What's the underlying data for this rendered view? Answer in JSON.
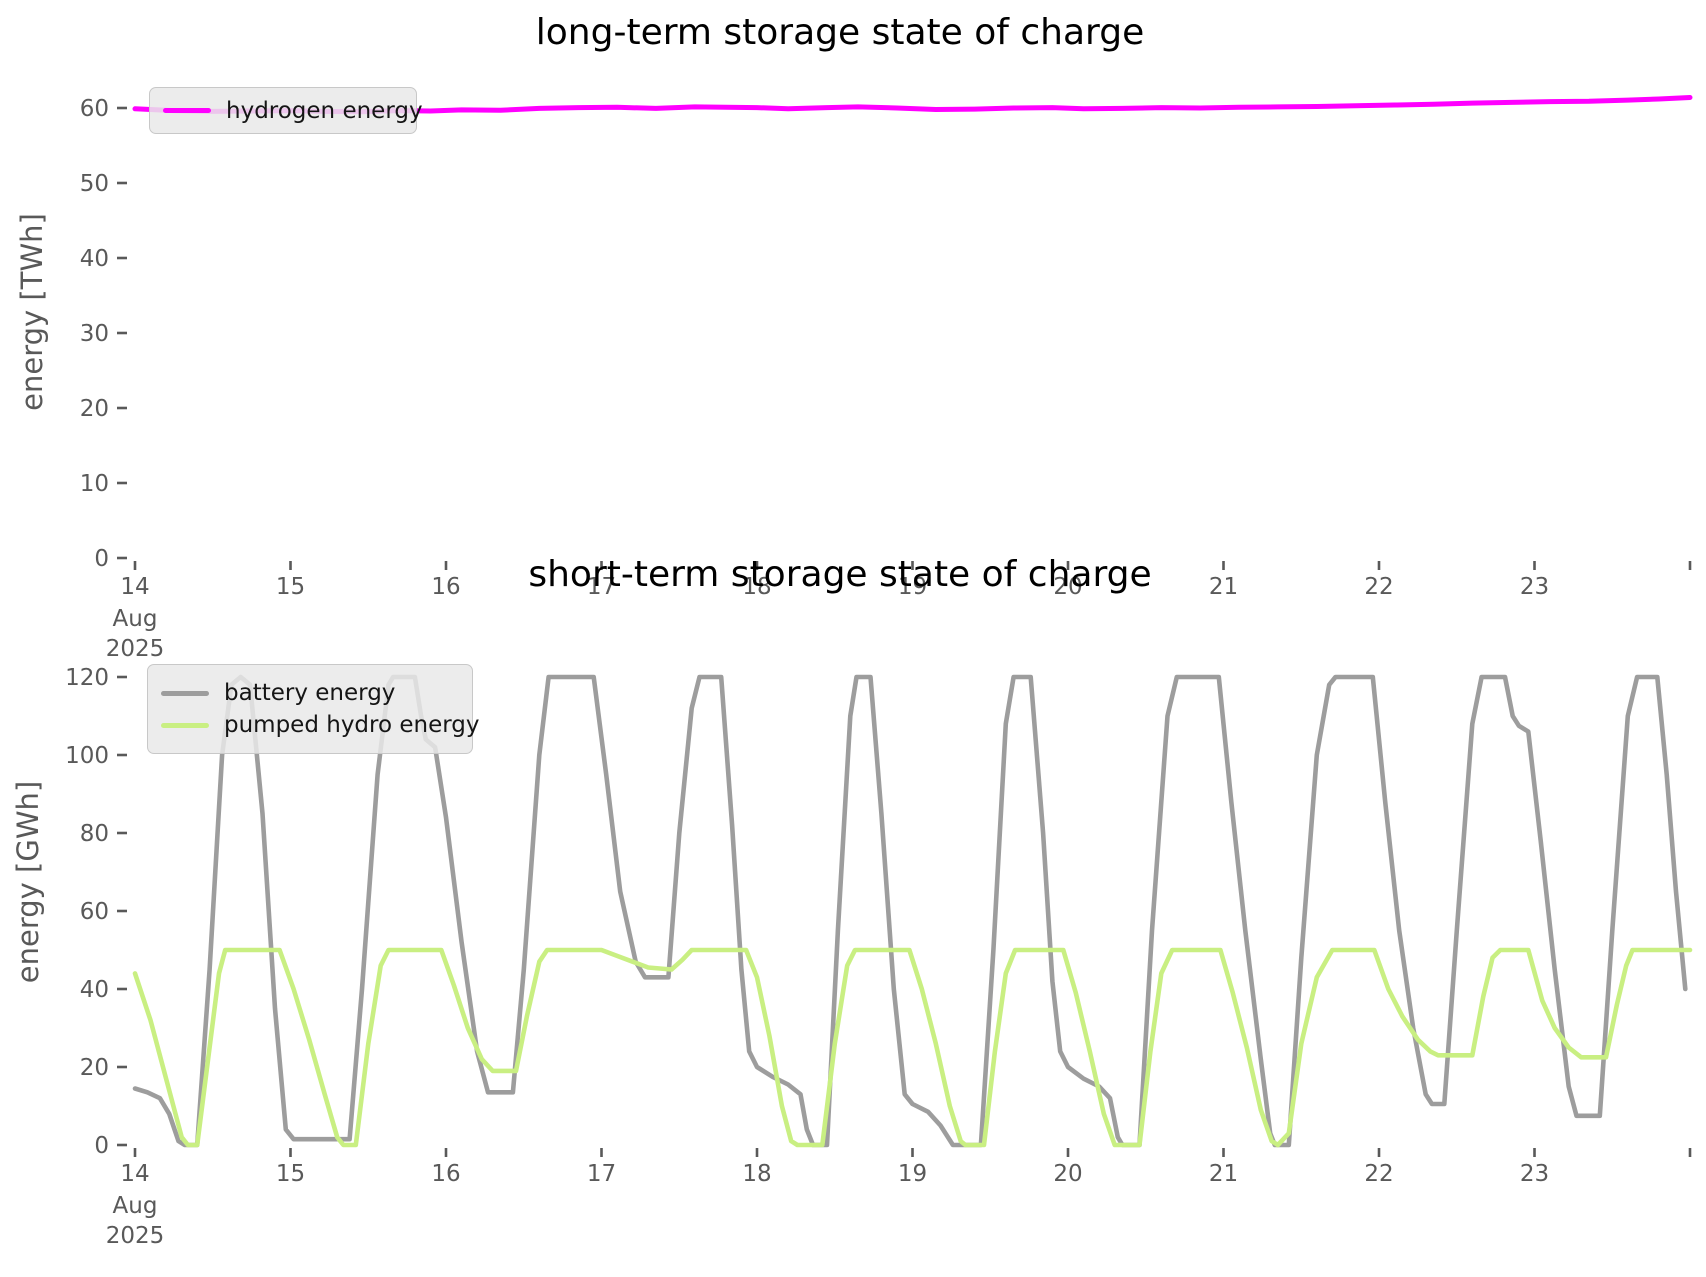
{
  "figure": {
    "background": "#ffffff",
    "tick_color": "#595959",
    "month_label": "Aug",
    "year_label": "2025"
  },
  "chart_data": [
    {
      "type": "line",
      "title": "long-term storage state of charge",
      "xlabel": "",
      "ylabel": "energy [TWh]",
      "xlim": [
        14,
        24
      ],
      "ylim": [
        0,
        63
      ],
      "grid": false,
      "legend_position": "upper left",
      "yticks": [
        0,
        10,
        20,
        30,
        40,
        50,
        60
      ],
      "xticks": {
        "days": [
          14,
          15,
          16,
          17,
          18,
          19,
          20,
          21,
          22,
          23,
          24
        ],
        "labels": [
          "14",
          "15",
          "16",
          "17",
          "18",
          "19",
          "20",
          "21",
          "22",
          "23",
          ""
        ]
      },
      "month": "Aug",
      "year": "2025",
      "series": [
        {
          "name": "hydrogen energy",
          "color": "#ff00ff",
          "points": [
            [
              14,
              59.9
            ],
            [
              14.25,
              59.65
            ],
            [
              14.5,
              59.55
            ],
            [
              14.75,
              59.6
            ],
            [
              15,
              59.65
            ],
            [
              15.2,
              59.55
            ],
            [
              15.45,
              59.5
            ],
            [
              15.7,
              59.65
            ],
            [
              15.9,
              59.6
            ],
            [
              16.1,
              59.75
            ],
            [
              16.35,
              59.7
            ],
            [
              16.6,
              59.95
            ],
            [
              16.85,
              60.05
            ],
            [
              17.1,
              60.1
            ],
            [
              17.35,
              59.95
            ],
            [
              17.6,
              60.15
            ],
            [
              17.8,
              60.1
            ],
            [
              18,
              60.05
            ],
            [
              18.2,
              59.9
            ],
            [
              18.45,
              60.05
            ],
            [
              18.65,
              60.15
            ],
            [
              18.9,
              60.0
            ],
            [
              19.15,
              59.8
            ],
            [
              19.4,
              59.85
            ],
            [
              19.65,
              60.0
            ],
            [
              19.9,
              60.05
            ],
            [
              20.1,
              59.9
            ],
            [
              20.35,
              59.95
            ],
            [
              20.6,
              60.05
            ],
            [
              20.85,
              60.0
            ],
            [
              21.1,
              60.1
            ],
            [
              21.35,
              60.15
            ],
            [
              21.6,
              60.2
            ],
            [
              21.85,
              60.3
            ],
            [
              22.1,
              60.4
            ],
            [
              22.35,
              60.5
            ],
            [
              22.6,
              60.65
            ],
            [
              22.85,
              60.75
            ],
            [
              23.1,
              60.85
            ],
            [
              23.35,
              60.9
            ],
            [
              23.6,
              61.05
            ],
            [
              23.8,
              61.2
            ],
            [
              24,
              61.4
            ]
          ]
        }
      ]
    },
    {
      "type": "line",
      "title": "short-term storage state of charge",
      "xlabel": "",
      "ylabel": "energy [GWh]",
      "xlim": [
        14,
        24
      ],
      "ylim": [
        0,
        126
      ],
      "grid": false,
      "legend_position": "upper left",
      "yticks": [
        0,
        20,
        40,
        60,
        80,
        100,
        120
      ],
      "xticks": {
        "days": [
          14,
          15,
          16,
          17,
          18,
          19,
          20,
          21,
          22,
          23,
          24
        ],
        "labels": [
          "14",
          "15",
          "16",
          "17",
          "18",
          "19",
          "20",
          "21",
          "22",
          "23",
          ""
        ]
      },
      "month": "Aug",
      "year": "2025",
      "series": [
        {
          "name": "battery energy",
          "color": "#9d9d9d",
          "points": [
            [
              14,
              14.5
            ],
            [
              14.08,
              13.5
            ],
            [
              14.16,
              12
            ],
            [
              14.22,
              8
            ],
            [
              14.28,
              1
            ],
            [
              14.32,
              0
            ],
            [
              14.4,
              0
            ],
            [
              14.48,
              45
            ],
            [
              14.56,
              100
            ],
            [
              14.62,
              118
            ],
            [
              14.68,
              120
            ],
            [
              14.74,
              118
            ],
            [
              14.82,
              85
            ],
            [
              14.9,
              35
            ],
            [
              14.97,
              4
            ],
            [
              15.02,
              1.5
            ],
            [
              15.38,
              1.5
            ],
            [
              15.46,
              40
            ],
            [
              15.56,
              95
            ],
            [
              15.63,
              118
            ],
            [
              15.66,
              120
            ],
            [
              15.8,
              120
            ],
            [
              15.84,
              110
            ],
            [
              15.87,
              104
            ],
            [
              15.93,
              102
            ],
            [
              16,
              84
            ],
            [
              16.1,
              52
            ],
            [
              16.2,
              24
            ],
            [
              16.27,
              13.5
            ],
            [
              16.43,
              13.5
            ],
            [
              16.5,
              45
            ],
            [
              16.6,
              100
            ],
            [
              16.66,
              120
            ],
            [
              16.95,
              120
            ],
            [
              17.03,
              95
            ],
            [
              17.12,
              65
            ],
            [
              17.22,
              47
            ],
            [
              17.28,
              43
            ],
            [
              17.43,
              43
            ],
            [
              17.5,
              80
            ],
            [
              17.58,
              112
            ],
            [
              17.63,
              120
            ],
            [
              17.77,
              120
            ],
            [
              17.84,
              82
            ],
            [
              17.9,
              45
            ],
            [
              17.95,
              24
            ],
            [
              18,
              20
            ],
            [
              18.1,
              17.5
            ],
            [
              18.2,
              15.5
            ],
            [
              18.28,
              13
            ],
            [
              18.32,
              4
            ],
            [
              18.36,
              0
            ],
            [
              18.45,
              0
            ],
            [
              18.52,
              55
            ],
            [
              18.6,
              110
            ],
            [
              18.64,
              120
            ],
            [
              18.73,
              120
            ],
            [
              18.8,
              85
            ],
            [
              18.88,
              40
            ],
            [
              18.95,
              13
            ],
            [
              19,
              10.5
            ],
            [
              19.1,
              8.5
            ],
            [
              19.18,
              5
            ],
            [
              19.26,
              0
            ],
            [
              19.44,
              0
            ],
            [
              19.52,
              50
            ],
            [
              19.6,
              108
            ],
            [
              19.65,
              120
            ],
            [
              19.76,
              120
            ],
            [
              19.84,
              80
            ],
            [
              19.9,
              42
            ],
            [
              19.95,
              24
            ],
            [
              20,
              20
            ],
            [
              20.1,
              17
            ],
            [
              20.2,
              15
            ],
            [
              20.27,
              12
            ],
            [
              20.32,
              2
            ],
            [
              20.35,
              0
            ],
            [
              20.46,
              0
            ],
            [
              20.54,
              55
            ],
            [
              20.64,
              110
            ],
            [
              20.7,
              120
            ],
            [
              20.97,
              120
            ],
            [
              21.05,
              88
            ],
            [
              21.14,
              55
            ],
            [
              21.24,
              22
            ],
            [
              21.3,
              3
            ],
            [
              21.33,
              0
            ],
            [
              21.42,
              0
            ],
            [
              21.5,
              48
            ],
            [
              21.6,
              100
            ],
            [
              21.68,
              118
            ],
            [
              21.72,
              120
            ],
            [
              21.96,
              120
            ],
            [
              22.04,
              88
            ],
            [
              22.13,
              55
            ],
            [
              22.22,
              30
            ],
            [
              22.3,
              13
            ],
            [
              22.34,
              10.5
            ],
            [
              22.42,
              10.5
            ],
            [
              22.5,
              55
            ],
            [
              22.6,
              108
            ],
            [
              22.66,
              120
            ],
            [
              22.81,
              120
            ],
            [
              22.86,
              110
            ],
            [
              22.9,
              107.5
            ],
            [
              22.96,
              106
            ],
            [
              23.04,
              78
            ],
            [
              23.13,
              45
            ],
            [
              23.22,
              15
            ],
            [
              23.27,
              7.5
            ],
            [
              23.42,
              7.5
            ],
            [
              23.5,
              55
            ],
            [
              23.6,
              110
            ],
            [
              23.66,
              120
            ],
            [
              23.79,
              120
            ],
            [
              23.85,
              95
            ],
            [
              23.91,
              65
            ],
            [
              23.97,
              40
            ]
          ]
        },
        {
          "name": "pumped hydro energy",
          "color": "#c9ef82",
          "points": [
            [
              14,
              44
            ],
            [
              14.1,
              32
            ],
            [
              14.2,
              17
            ],
            [
              14.3,
              2
            ],
            [
              14.34,
              0
            ],
            [
              14.4,
              0
            ],
            [
              14.47,
              22
            ],
            [
              14.54,
              44
            ],
            [
              14.58,
              50
            ],
            [
              14.93,
              50
            ],
            [
              15.02,
              40
            ],
            [
              15.12,
              27
            ],
            [
              15.22,
              13
            ],
            [
              15.3,
              2
            ],
            [
              15.34,
              0
            ],
            [
              15.42,
              0
            ],
            [
              15.5,
              26
            ],
            [
              15.58,
              46
            ],
            [
              15.63,
              50
            ],
            [
              15.97,
              50
            ],
            [
              16.05,
              41
            ],
            [
              16.14,
              30
            ],
            [
              16.23,
              22
            ],
            [
              16.3,
              19
            ],
            [
              16.45,
              19
            ],
            [
              16.52,
              33
            ],
            [
              16.6,
              47
            ],
            [
              16.65,
              50
            ],
            [
              17,
              50
            ],
            [
              17.1,
              48.5
            ],
            [
              17.2,
              47
            ],
            [
              17.3,
              45.5
            ],
            [
              17.45,
              45
            ],
            [
              17.52,
              47.5
            ],
            [
              17.58,
              50
            ],
            [
              17.93,
              50
            ],
            [
              18,
              43
            ],
            [
              18.08,
              28
            ],
            [
              18.16,
              10
            ],
            [
              18.22,
              1
            ],
            [
              18.26,
              0
            ],
            [
              18.42,
              0
            ],
            [
              18.5,
              26
            ],
            [
              18.58,
              46
            ],
            [
              18.63,
              50
            ],
            [
              18.98,
              50
            ],
            [
              19.06,
              40
            ],
            [
              19.15,
              26
            ],
            [
              19.24,
              10
            ],
            [
              19.31,
              1
            ],
            [
              19.34,
              0
            ],
            [
              19.46,
              0
            ],
            [
              19.53,
              24
            ],
            [
              19.6,
              44
            ],
            [
              19.66,
              50
            ],
            [
              19.97,
              50
            ],
            [
              20.05,
              39
            ],
            [
              20.14,
              24
            ],
            [
              20.23,
              8
            ],
            [
              20.3,
              0
            ],
            [
              20.46,
              0
            ],
            [
              20.53,
              24
            ],
            [
              20.6,
              44
            ],
            [
              20.67,
              50
            ],
            [
              20.98,
              50
            ],
            [
              21.06,
              39
            ],
            [
              21.15,
              25
            ],
            [
              21.24,
              9
            ],
            [
              21.31,
              1
            ],
            [
              21.35,
              0
            ],
            [
              21.42,
              3
            ],
            [
              21.5,
              26
            ],
            [
              21.6,
              43
            ],
            [
              21.7,
              50
            ],
            [
              21.97,
              50
            ],
            [
              22.06,
              40
            ],
            [
              22.15,
              33
            ],
            [
              22.25,
              27
            ],
            [
              22.33,
              24
            ],
            [
              22.38,
              23
            ],
            [
              22.6,
              23
            ],
            [
              22.67,
              38
            ],
            [
              22.73,
              48
            ],
            [
              22.78,
              50
            ],
            [
              22.96,
              50
            ],
            [
              23.05,
              37
            ],
            [
              23.13,
              30
            ],
            [
              23.22,
              25
            ],
            [
              23.3,
              22.5
            ],
            [
              23.46,
              22.5
            ],
            [
              23.53,
              36
            ],
            [
              23.59,
              46
            ],
            [
              23.63,
              50
            ],
            [
              24,
              50
            ]
          ]
        }
      ]
    }
  ]
}
